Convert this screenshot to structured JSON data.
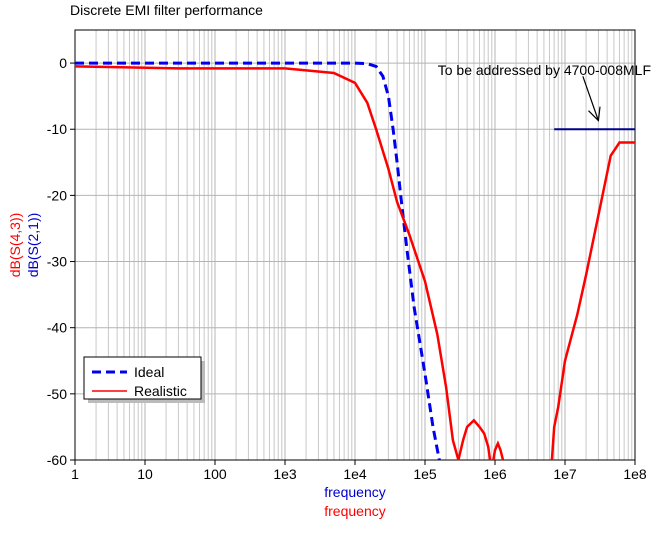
{
  "chart_data": {
    "type": "line",
    "title": "Discrete EMI filter performance",
    "x_scale": "log",
    "xlim": [
      1,
      100000000
    ],
    "ylim": [
      -60,
      5
    ],
    "grid": true,
    "x_tick_labels": [
      "1",
      "10",
      "100",
      "1e3",
      "1e4",
      "1e5",
      "1e6",
      "1e7",
      "1e8"
    ],
    "y_tick_labels": [
      "0",
      "-10",
      "-20",
      "-30",
      "-40",
      "-50",
      "-60"
    ],
    "xlabels": [
      {
        "text": "frequency",
        "color": "#0000cc"
      },
      {
        "text": "frequency",
        "color": "#ff0000"
      }
    ],
    "ylabels": [
      {
        "text": "dB(S(4,3))",
        "color": "#ff0000"
      },
      {
        "text": "dB(S(2,1))",
        "color": "#0000cc"
      }
    ],
    "legend": {
      "position": "bottom-left",
      "items": [
        {
          "label": "Ideal",
          "color": "#0000ee",
          "style": "dashed"
        },
        {
          "label": "Realistic",
          "color": "#ff0000",
          "style": "solid"
        }
      ]
    },
    "series": [
      {
        "name": "Ideal",
        "color": "#0000ee",
        "style": "dashed",
        "x": [
          1,
          1000,
          10000,
          15000,
          20000,
          25000,
          30000,
          35000,
          40000,
          45000,
          55000,
          70000,
          100000,
          130000,
          160000
        ],
        "y": [
          0,
          0,
          0,
          -0.1,
          -0.5,
          -2,
          -5,
          -10,
          -15,
          -20,
          -28,
          -37,
          -47,
          -55,
          -60
        ]
      },
      {
        "name": "Realistic",
        "color": "#ff0000",
        "style": "solid",
        "x": [
          1,
          30,
          1000,
          5000,
          10000,
          15000,
          20000,
          30000,
          40000,
          60000,
          100000,
          150000,
          200000,
          250000,
          300000
        ],
        "y": [
          -0.5,
          -0.8,
          -0.8,
          -1.5,
          -3,
          -6,
          -10,
          -16,
          -21,
          -26,
          -33,
          -41,
          -49,
          -57,
          -60
        ]
      },
      {
        "name": "",
        "color": "#ff0000",
        "style": "solid",
        "x": [
          300000,
          350000,
          400000,
          500000,
          600000,
          700000,
          800000,
          850000
        ],
        "y": [
          -60,
          -57,
          -55,
          -54,
          -55,
          -56,
          -58,
          -60
        ]
      },
      {
        "name": "",
        "color": "#ff0000",
        "style": "solid",
        "x": [
          950000,
          1000000,
          1100000,
          1200000,
          1300000
        ],
        "y": [
          -60,
          -58.5,
          -57.5,
          -58.5,
          -60
        ]
      },
      {
        "name": "",
        "color": "#ff0000",
        "style": "solid",
        "x": [
          6500000,
          7000000,
          8000000,
          10000000,
          15000000,
          20000000,
          30000000,
          45000000,
          60000000,
          80000000,
          100000000
        ],
        "y": [
          -60,
          -55,
          -52,
          -45,
          -38,
          -32,
          -23,
          -14,
          -12,
          -12,
          -12
        ]
      },
      {
        "name": "",
        "color": "#00008b",
        "style": "solid",
        "x": [
          7000000,
          100000000
        ],
        "y": [
          -10,
          -10
        ]
      }
    ],
    "annotations": [
      {
        "text": "To be addressed by 4700-008MLF",
        "arrow_from": [
          18000000,
          -2
        ],
        "arrow_to": [
          30000000,
          -8.7
        ]
      }
    ]
  }
}
